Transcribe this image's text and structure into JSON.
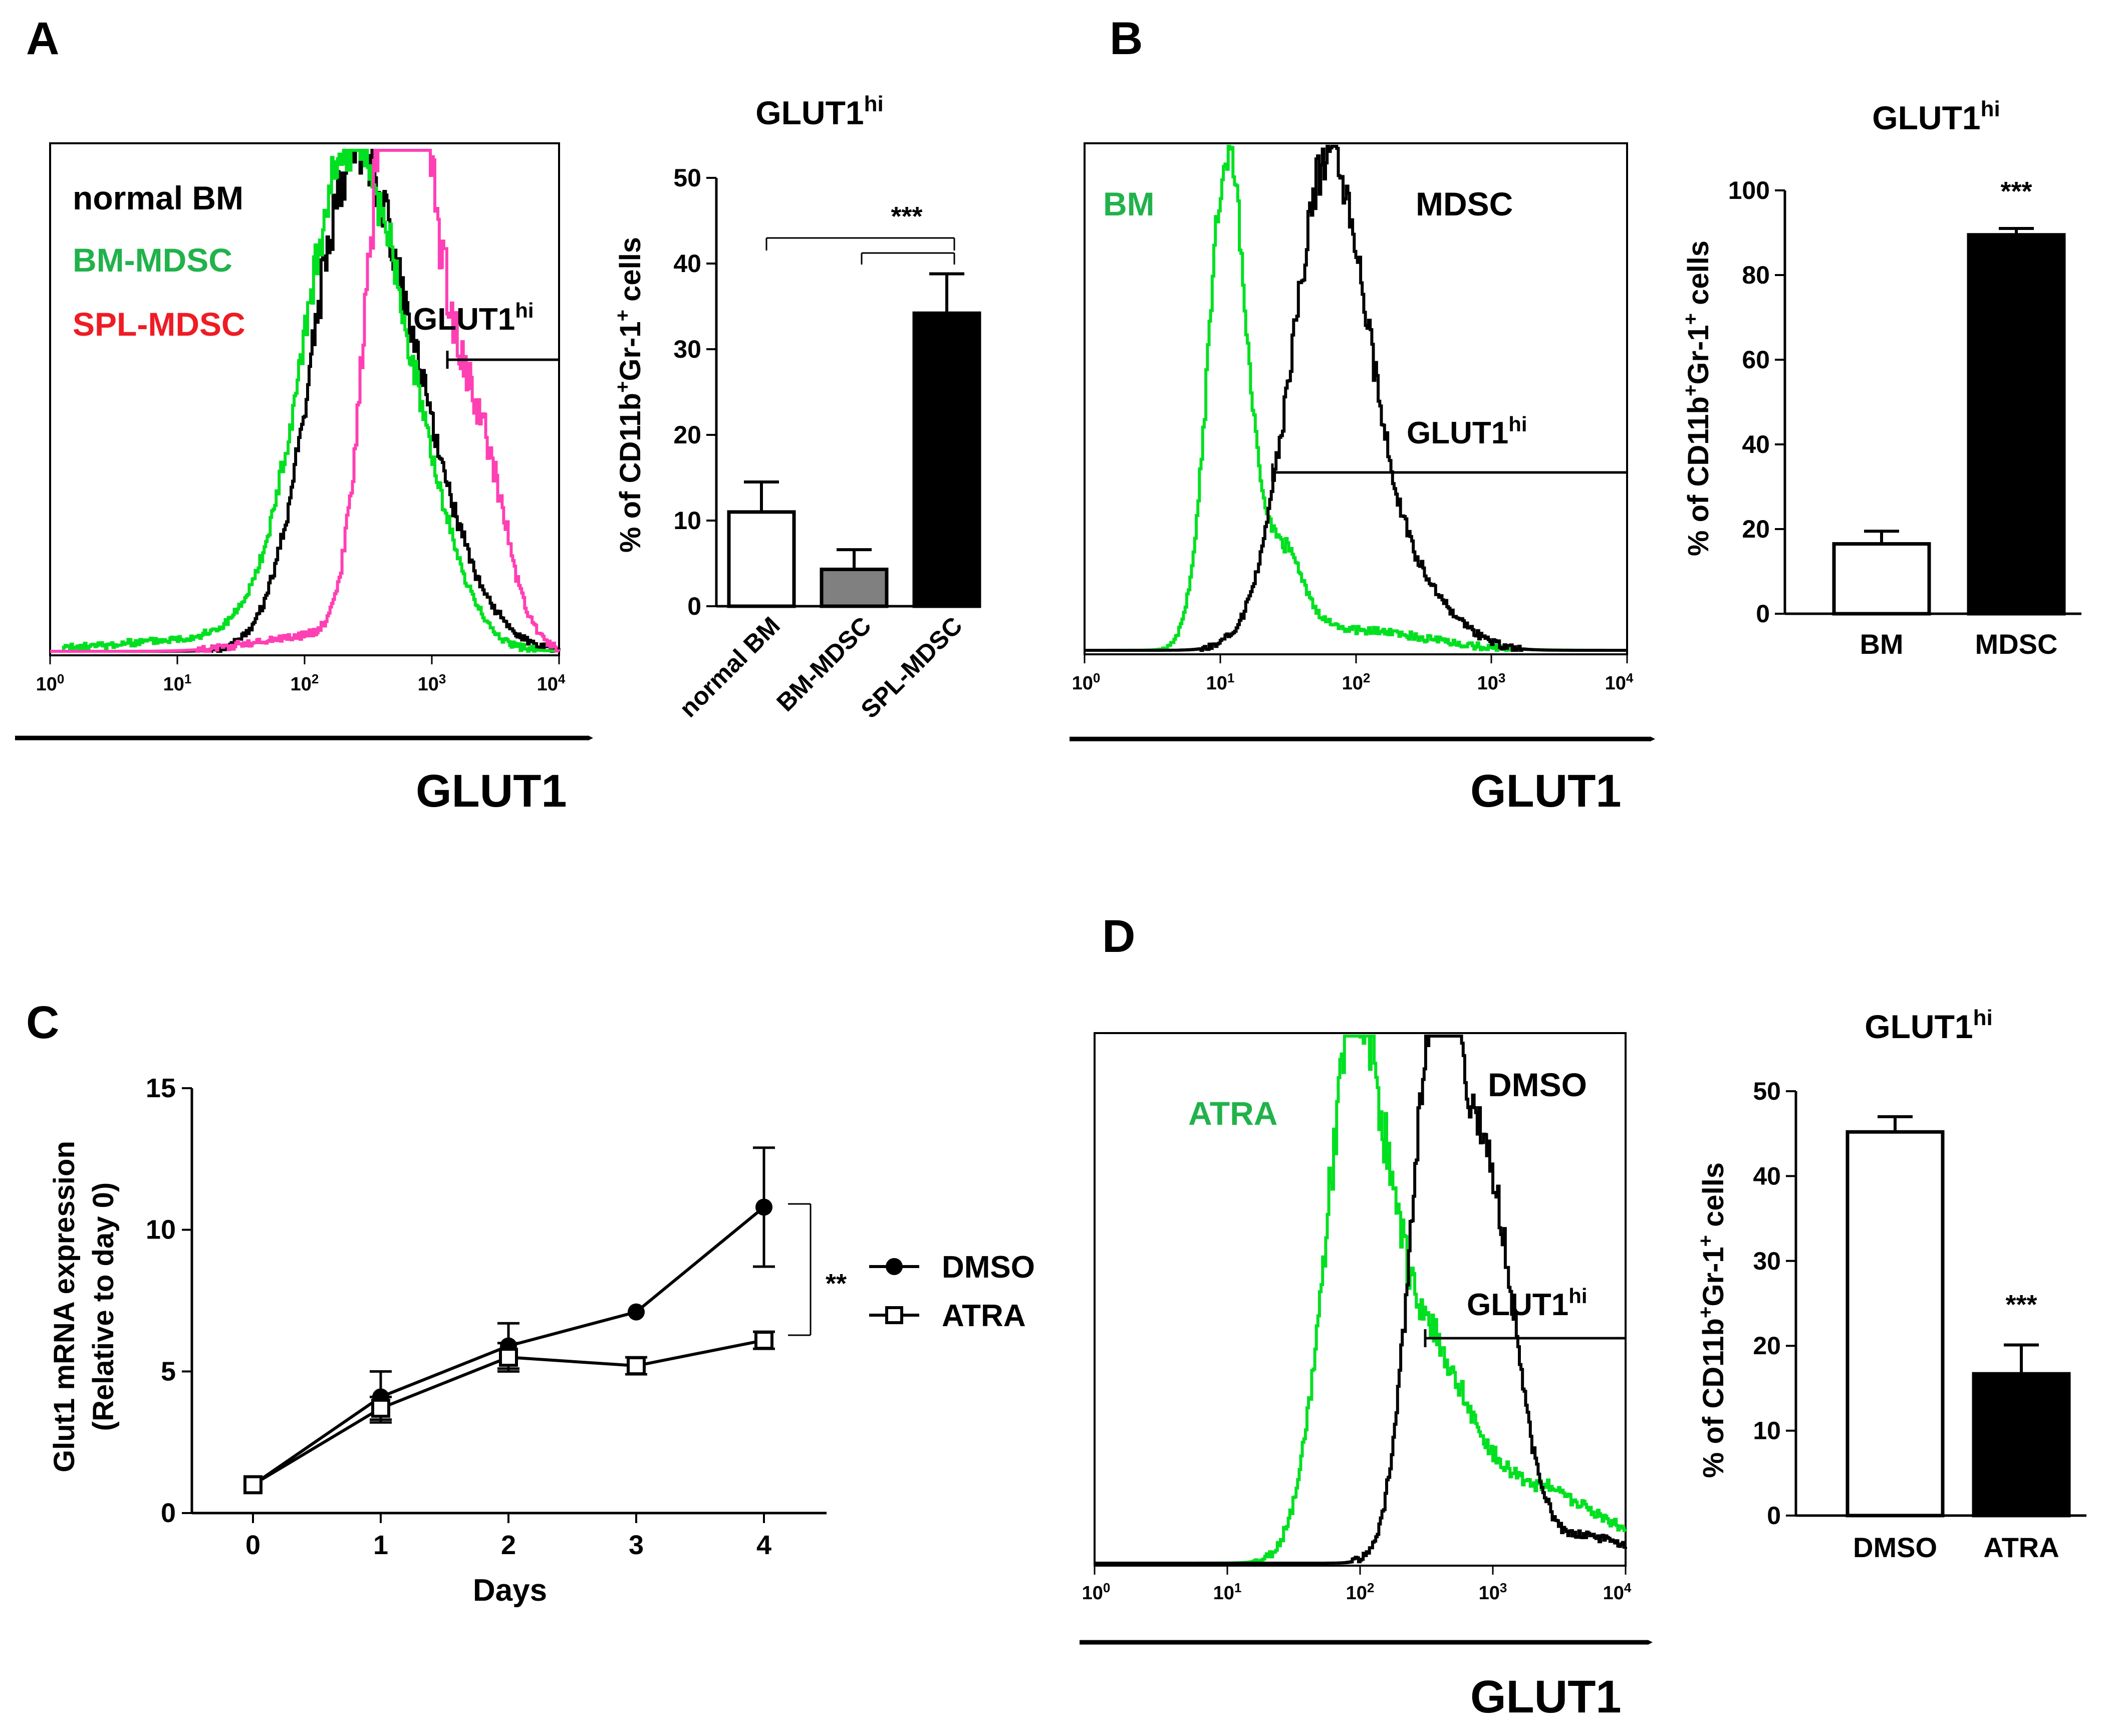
{
  "figure": {
    "panel_labels": [
      "A",
      "B",
      "C",
      "D"
    ],
    "glut1_axis_label": "GLUT1",
    "gate_label": "GLUT1",
    "gate_sup": "hi",
    "bar_ylabel": {
      "pre": "% of CD11b",
      "sup1": "+",
      "mid": "Gr-1",
      "sup2": "+",
      "post": " cells"
    },
    "bar_title": {
      "main": "GLUT1",
      "sup": "hi"
    },
    "colors": {
      "black": "#000000",
      "green": "#00e020",
      "green_text": "#21b24b",
      "red_text": "#ee1c24",
      "magenta": "#ff3fb4",
      "gray_bar": "#808080"
    }
  },
  "chart_data": [
    {
      "panel": "A",
      "type": "histogram",
      "xaxis": "log",
      "xlim": [
        1,
        10000
      ],
      "ticks": [
        {
          "base": "10",
          "exp": "0"
        },
        {
          "base": "10",
          "exp": "1"
        },
        {
          "base": "10",
          "exp": "2"
        },
        {
          "base": "10",
          "exp": "3"
        },
        {
          "base": "10",
          "exp": "4"
        }
      ],
      "series": [
        {
          "name": "normal BM",
          "color": "#000000",
          "peak_log": 2.38,
          "width": 0.34
        },
        {
          "name": "BM-MDSC",
          "color": "#00e020",
          "peak_log": 2.35,
          "width": 0.36
        },
        {
          "name": "SPL-MDSC",
          "color": "#ff3fb4",
          "peak_log": 2.9,
          "width": 0.3
        }
      ],
      "legend": [
        "normal BM",
        "BM-MDSC",
        "SPL-MDSC"
      ],
      "gate": {
        "from_log": 3.1,
        "label": "GLUT1hi"
      }
    },
    {
      "panel": "A",
      "type": "bar",
      "title": "GLUT1hi",
      "categories": [
        "normal BM",
        "BM-MDSC",
        "SPL-MDSC"
      ],
      "values": [
        11,
        4.3,
        34.2
      ],
      "errors": [
        3.5,
        2.3,
        4.6
      ],
      "fills": [
        "#ffffff",
        "#808080",
        "#000000"
      ],
      "ylim": [
        0,
        50
      ],
      "yticks": [
        0,
        10,
        20,
        30,
        40,
        50
      ],
      "ylabel": "% of CD11b+Gr-1+ cells",
      "significance": "***"
    },
    {
      "panel": "B",
      "type": "histogram",
      "xaxis": "log",
      "xlim": [
        1,
        10000
      ],
      "ticks": [
        {
          "base": "10",
          "exp": "0"
        },
        {
          "base": "10",
          "exp": "1"
        },
        {
          "base": "10",
          "exp": "2"
        },
        {
          "base": "10",
          "exp": "3"
        },
        {
          "base": "10",
          "exp": "4"
        }
      ],
      "series": [
        {
          "name": "BM",
          "color": "#00e020"
        },
        {
          "name": "MDSC",
          "color": "#000000"
        }
      ],
      "legend": [
        "BM",
        "MDSC"
      ],
      "gate": {
        "from_log": 1.3,
        "label": "GLUT1hi"
      }
    },
    {
      "panel": "B",
      "type": "bar",
      "title": "GLUT1hi",
      "categories": [
        "BM",
        "MDSC"
      ],
      "values": [
        16.5,
        89.5
      ],
      "errors": [
        3,
        1.5
      ],
      "fills": [
        "#ffffff",
        "#000000"
      ],
      "ylim": [
        0,
        100
      ],
      "yticks": [
        0,
        20,
        40,
        60,
        80,
        100
      ],
      "ylabel": "% of CD11b+Gr-1+ cells",
      "significance": "***"
    },
    {
      "panel": "C",
      "type": "line",
      "x": [
        0,
        1,
        2,
        3,
        4
      ],
      "xlabel": "Days",
      "ylabel_lines": [
        "Glut1 mRNA expression",
        "(Relative to day 0)"
      ],
      "ylim": [
        0,
        15
      ],
      "yticks": [
        0,
        5,
        10,
        15
      ],
      "series": [
        {
          "name": "DMSO",
          "values": [
            1,
            4.1,
            5.9,
            7.1,
            10.8
          ],
          "errors": [
            0,
            0.9,
            0.8,
            0,
            2.1
          ],
          "marker": "circle-filled"
        },
        {
          "name": "ATRA",
          "values": [
            1,
            3.7,
            5.5,
            5.2,
            6.1
          ],
          "errors": [
            0,
            0.4,
            0.5,
            0.3,
            0.3
          ],
          "marker": "square-open"
        }
      ],
      "significance": "**"
    },
    {
      "panel": "D",
      "type": "histogram",
      "xaxis": "log",
      "xlim": [
        1,
        10000
      ],
      "ticks": [
        {
          "base": "10",
          "exp": "0"
        },
        {
          "base": "10",
          "exp": "1"
        },
        {
          "base": "10",
          "exp": "2"
        },
        {
          "base": "10",
          "exp": "3"
        },
        {
          "base": "10",
          "exp": "4"
        }
      ],
      "series": [
        {
          "name": "ATRA",
          "color": "#00e020"
        },
        {
          "name": "DMSO",
          "color": "#000000"
        }
      ],
      "legend": [
        "ATRA",
        "DMSO"
      ],
      "gate": {
        "from_log": 2.5,
        "label": "GLUT1hi"
      }
    },
    {
      "panel": "D",
      "type": "bar",
      "title": "GLUT1hi",
      "categories": [
        "DMSO",
        "ATRA"
      ],
      "values": [
        45.2,
        16.7
      ],
      "errors": [
        1.8,
        3.4
      ],
      "fills": [
        "#ffffff",
        "#000000"
      ],
      "ylim": [
        0,
        50
      ],
      "yticks": [
        0,
        10,
        20,
        30,
        40,
        50
      ],
      "ylabel": "% of CD11b+Gr-1+ cells",
      "significance": "***"
    }
  ]
}
